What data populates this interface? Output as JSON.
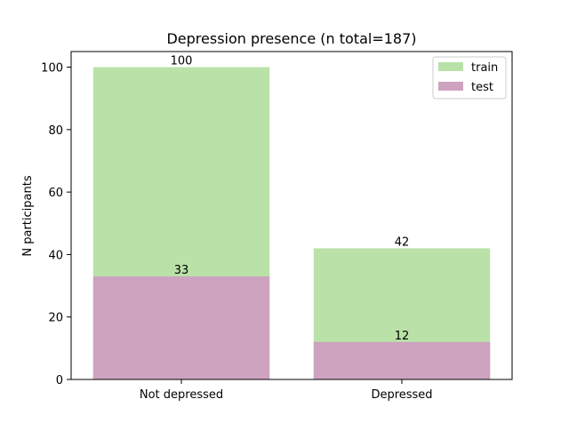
{
  "chart_data": {
    "type": "bar",
    "title": "Depression presence (n total=187)",
    "xlabel": "",
    "ylabel": "N participants",
    "categories": [
      "Not depressed",
      "Depressed"
    ],
    "series": [
      {
        "name": "train",
        "values": [
          100,
          42
        ],
        "color": "#bae2a8"
      },
      {
        "name": "test",
        "values": [
          33,
          12
        ],
        "color": "#cda3c0"
      }
    ],
    "data_labels": {
      "train": [
        "100",
        "42"
      ],
      "test": [
        "33",
        "12"
      ]
    },
    "ylim": [
      0,
      105
    ],
    "yticks": [
      0,
      20,
      40,
      60,
      80,
      100
    ],
    "grid": false,
    "legend_position": "top-right",
    "overlay": "test bars drawn over train bars"
  }
}
